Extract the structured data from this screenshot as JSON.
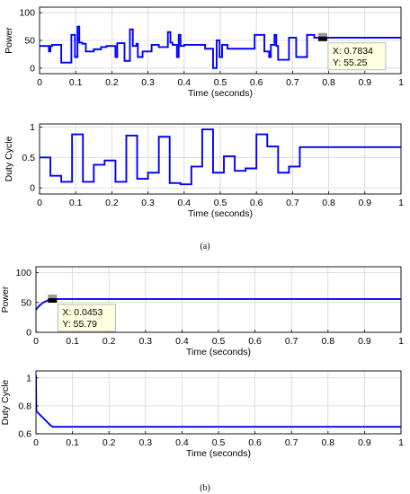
{
  "chart_data": [
    {
      "type": "line",
      "panel": "(a)",
      "xlabel": "Time (seconds)",
      "ylabel": "Power",
      "xlim": [
        0,
        1
      ],
      "ylim": [
        -10,
        110
      ],
      "xticks": [
        0,
        0.1,
        0.2,
        0.3,
        0.4,
        0.5,
        0.6,
        0.7,
        0.8,
        0.9,
        1
      ],
      "yticks": [
        0,
        50,
        100
      ],
      "grid": true,
      "color": "#0000FF",
      "series": [
        {
          "x": [
            0,
            0.026,
            0.026,
            0.03,
            0.03,
            0.035,
            0.035,
            0.06,
            0.06,
            0.088,
            0.088,
            0.098,
            0.098,
            0.105,
            0.105,
            0.11,
            0.11,
            0.118,
            0.118,
            0.128,
            0.128,
            0.15,
            0.15,
            0.17,
            0.17,
            0.185,
            0.185,
            0.21,
            0.21,
            0.215,
            0.215,
            0.235,
            0.235,
            0.25,
            0.25,
            0.258,
            0.258,
            0.268,
            0.268,
            0.272,
            0.272,
            0.285,
            0.285,
            0.31,
            0.31,
            0.33,
            0.33,
            0.355,
            0.355,
            0.362,
            0.362,
            0.368,
            0.368,
            0.38,
            0.38,
            0.385,
            0.385,
            0.39,
            0.39,
            0.4,
            0.4,
            0.458,
            0.458,
            0.48,
            0.48,
            0.49,
            0.49,
            0.498,
            0.498,
            0.505,
            0.505,
            0.52,
            0.52,
            0.545,
            0.545,
            0.56,
            0.56,
            0.595,
            0.595,
            0.622,
            0.622,
            0.635,
            0.635,
            0.64,
            0.64,
            0.65,
            0.65,
            0.655,
            0.655,
            0.66,
            0.66,
            0.69,
            0.69,
            0.71,
            0.71,
            0.74,
            0.74,
            0.76,
            0.76,
            0.79,
            0.79,
            1.0
          ],
          "y": [
            40,
            40,
            30,
            30,
            40,
            40,
            42,
            42,
            10,
            10,
            60,
            60,
            20,
            20,
            75,
            75,
            46,
            46,
            44,
            44,
            30,
            30,
            34,
            34,
            38,
            38,
            40,
            40,
            20,
            20,
            45,
            45,
            13,
            13,
            70,
            70,
            40,
            40,
            44,
            44,
            20,
            20,
            30,
            30,
            42,
            42,
            38,
            38,
            65,
            65,
            46,
            46,
            42,
            42,
            20,
            20,
            60,
            60,
            40,
            40,
            42,
            42,
            35,
            35,
            0,
            0,
            50,
            50,
            20,
            20,
            42,
            42,
            35,
            35,
            35,
            35,
            35,
            35,
            60,
            60,
            30,
            30,
            20,
            20,
            42,
            42,
            60,
            60,
            40,
            40,
            15,
            15,
            55,
            55,
            20,
            20,
            60,
            60,
            55,
            55,
            55,
            55
          ]
        }
      ],
      "datatip": {
        "x": 0.7834,
        "y": 55.25,
        "label_x": "X: 0.7834",
        "label_y": "Y: 55.25"
      }
    },
    {
      "type": "line",
      "panel": "(a)",
      "xlabel": "Time (seconds)",
      "ylabel": "Duty Cycle",
      "xlim": [
        0,
        1
      ],
      "ylim": [
        -0.1,
        1.05
      ],
      "xticks": [
        0,
        0.1,
        0.2,
        0.3,
        0.4,
        0.5,
        0.6,
        0.7,
        0.8,
        0.9,
        1
      ],
      "yticks": [
        0,
        0.5,
        1
      ],
      "grid": true,
      "color": "#0000FF",
      "series": [
        {
          "x": [
            0,
            0.03,
            0.03,
            0.06,
            0.06,
            0.09,
            0.09,
            0.12,
            0.12,
            0.15,
            0.15,
            0.18,
            0.18,
            0.21,
            0.21,
            0.24,
            0.24,
            0.27,
            0.27,
            0.3,
            0.3,
            0.33,
            0.33,
            0.36,
            0.36,
            0.39,
            0.39,
            0.42,
            0.42,
            0.45,
            0.45,
            0.48,
            0.48,
            0.51,
            0.51,
            0.54,
            0.54,
            0.57,
            0.57,
            0.6,
            0.6,
            0.63,
            0.63,
            0.66,
            0.66,
            0.69,
            0.69,
            0.72,
            0.72,
            0.75,
            0.75,
            1.0
          ],
          "y": [
            0.5,
            0.5,
            0.2,
            0.2,
            0.1,
            0.1,
            0.88,
            0.88,
            0.1,
            0.1,
            0.38,
            0.38,
            0.45,
            0.45,
            0.1,
            0.1,
            0.86,
            0.86,
            0.15,
            0.15,
            0.25,
            0.25,
            0.84,
            0.84,
            0.08,
            0.08,
            0.06,
            0.06,
            0.35,
            0.35,
            0.96,
            0.96,
            0.25,
            0.25,
            0.52,
            0.52,
            0.28,
            0.28,
            0.32,
            0.32,
            0.88,
            0.88,
            0.68,
            0.68,
            0.25,
            0.25,
            0.35,
            0.35,
            0.67,
            0.67,
            0.67,
            0.67
          ]
        }
      ]
    },
    {
      "type": "line",
      "panel": "(b)",
      "xlabel": "Time (seconds)",
      "ylabel": "Power",
      "xlim": [
        0,
        1
      ],
      "ylim": [
        0,
        110
      ],
      "xticks": [
        0,
        0.1,
        0.2,
        0.3,
        0.4,
        0.5,
        0.6,
        0.7,
        0.8,
        0.9,
        1
      ],
      "yticks": [
        0,
        50,
        100
      ],
      "grid": true,
      "color": "#0000FF",
      "series": [
        {
          "x": [
            0,
            0.005,
            0.01,
            0.02,
            0.03,
            0.04,
            0.0453,
            0.06,
            1.0
          ],
          "y": [
            38,
            42,
            45,
            50,
            53,
            55,
            55.79,
            55.8,
            55.8
          ]
        }
      ],
      "datatip": {
        "x": 0.0453,
        "y": 55.79,
        "label_x": "X: 0.0453",
        "label_y": "Y: 55.79"
      }
    },
    {
      "type": "line",
      "panel": "(b)",
      "xlabel": "Time (seconds)",
      "ylabel": "Duty Cycle",
      "xlim": [
        0,
        1
      ],
      "ylim": [
        0.6,
        1.05
      ],
      "xticks": [
        0,
        0.1,
        0.2,
        0.3,
        0.4,
        0.5,
        0.6,
        0.7,
        0.8,
        0.9,
        1
      ],
      "yticks": [
        0.6,
        0.8,
        1
      ],
      "grid": true,
      "color": "#0000FF",
      "series": [
        {
          "x": [
            0,
            0.001,
            0.002,
            0.04,
            0.046,
            1.0
          ],
          "y": [
            1.02,
            0.77,
            0.76,
            0.66,
            0.65,
            0.65
          ]
        }
      ]
    }
  ],
  "panel_labels": [
    "(a)",
    "(b)"
  ]
}
